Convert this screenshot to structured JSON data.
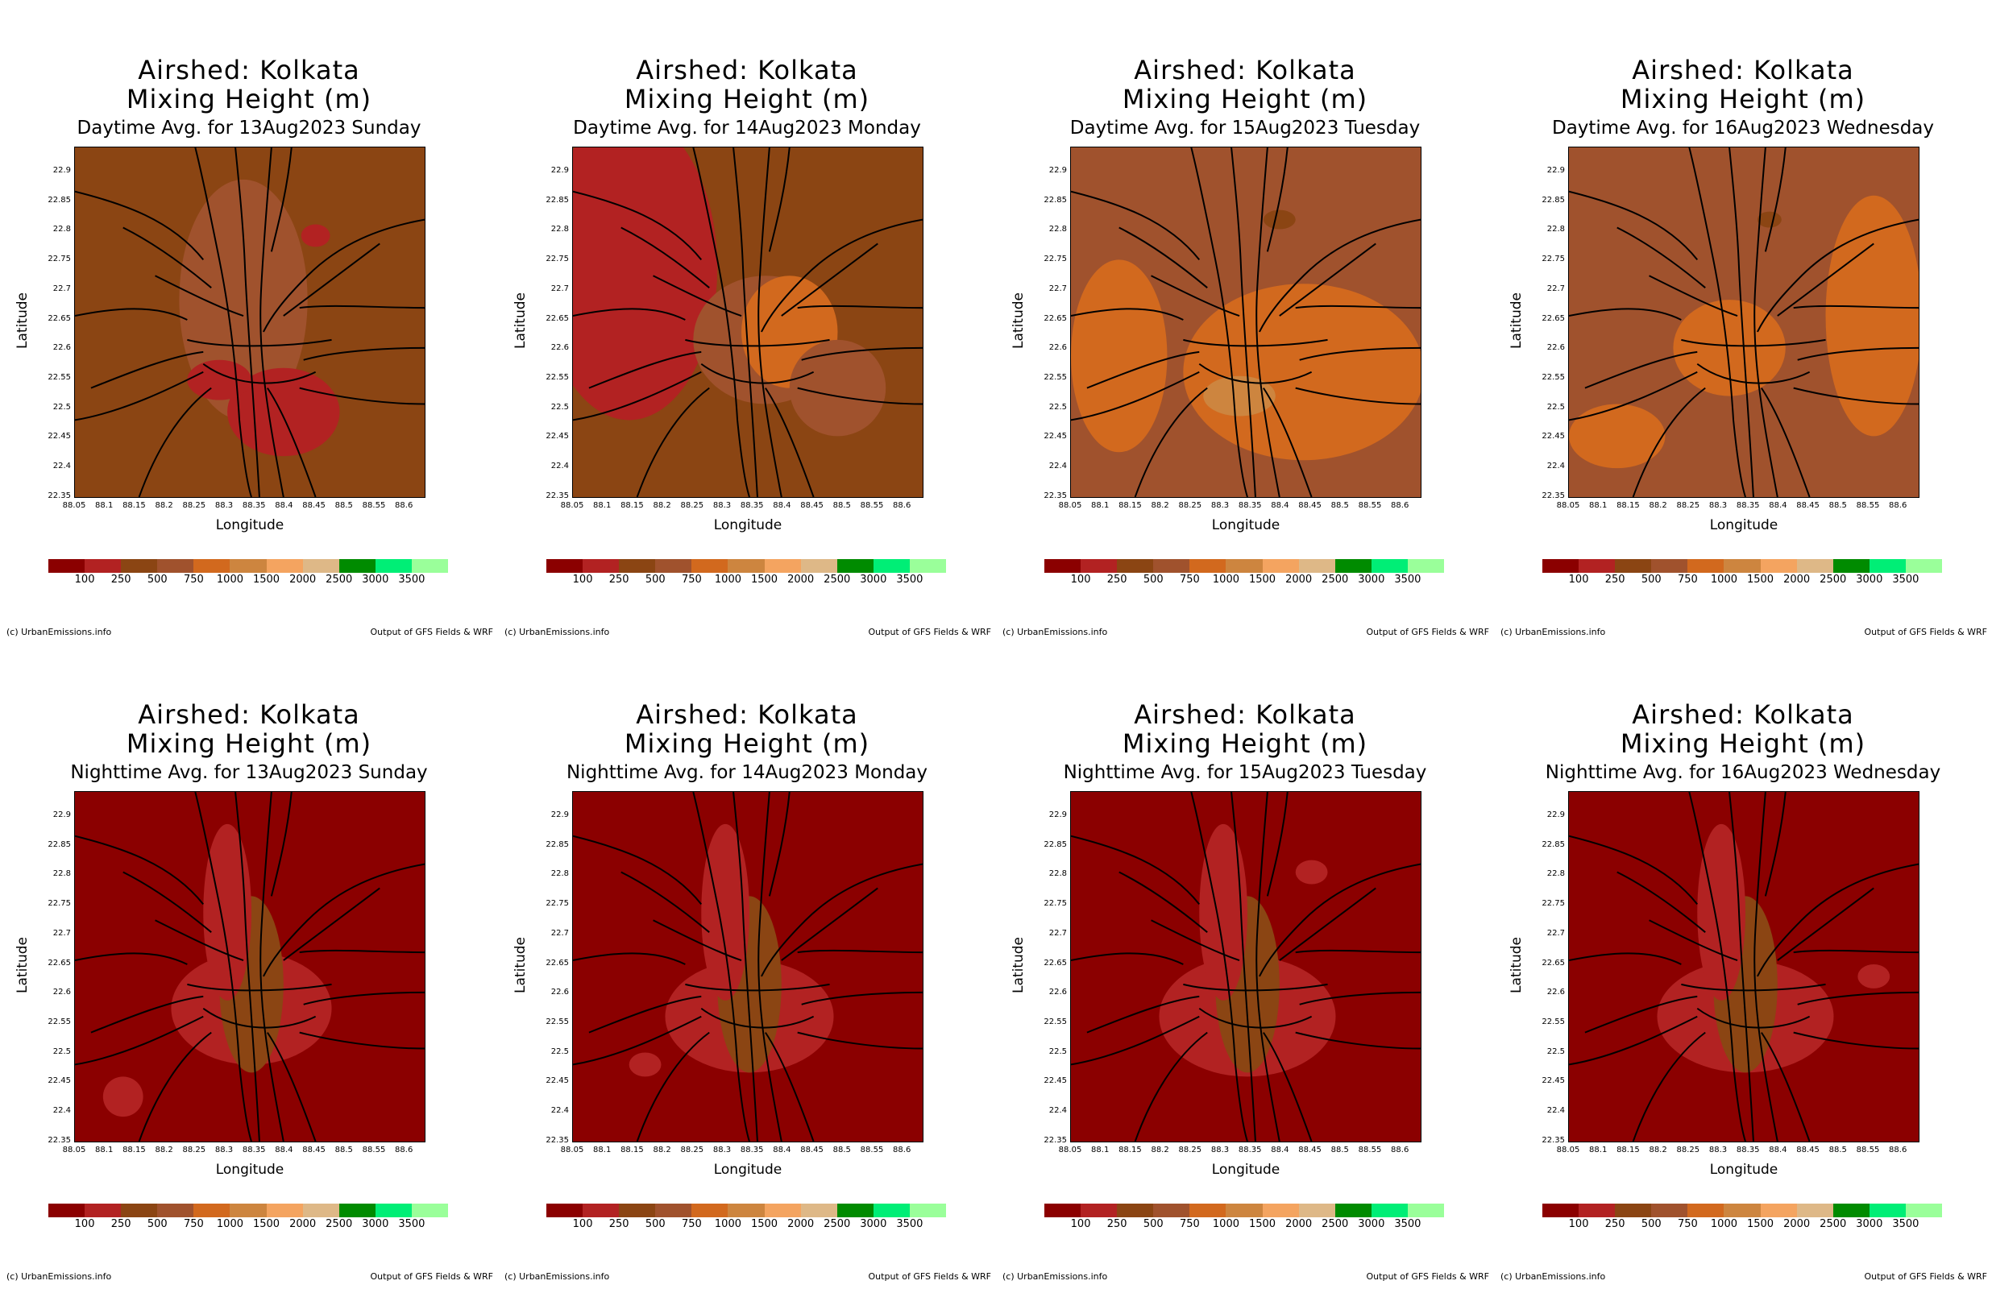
{
  "title_line1": "Airshed: Kolkata",
  "title_line2": "Mixing Height (m)",
  "xlabel": "Longitude",
  "ylabel": "Latitude",
  "copyright": "(c) UrbanEmissions.info",
  "source": "Output of GFS Fields & WRF",
  "lon_ticks": [
    "88.05",
    "88.1",
    "88.15",
    "88.2",
    "88.25",
    "88.3",
    "88.35",
    "88.4",
    "88.45",
    "88.5",
    "88.55",
    "88.6"
  ],
  "lat_ticks": [
    "22.9",
    "22.85",
    "22.8",
    "22.75",
    "22.7",
    "22.65",
    "22.6",
    "22.55",
    "22.5",
    "22.45",
    "22.4",
    "22.35"
  ],
  "colorbar": {
    "colors": [
      "#8b0000",
      "#b22222",
      "#8b4513",
      "#a0522d",
      "#d2691e",
      "#cd853f",
      "#f4a460",
      "#deb887",
      "#008b00",
      "#00ee76",
      "#9aff9a"
    ],
    "labels": [
      "100",
      "250",
      "500",
      "750",
      "1000",
      "1500",
      "2000",
      "2500",
      "3000",
      "3500"
    ]
  },
  "panels": [
    {
      "subtitle": "Daytime Avg. for 13Aug2023 Sunday"
    },
    {
      "subtitle": "Daytime Avg. for 14Aug2023 Monday"
    },
    {
      "subtitle": "Daytime Avg. for 15Aug2023 Tuesday"
    },
    {
      "subtitle": "Daytime Avg. for 16Aug2023 Wednesday"
    },
    {
      "subtitle": "Nighttime Avg. for 13Aug2023 Sunday"
    },
    {
      "subtitle": "Nighttime Avg. for 14Aug2023 Monday"
    },
    {
      "subtitle": "Nighttime Avg. for 15Aug2023 Tuesday"
    },
    {
      "subtitle": "Nighttime Avg. for 16Aug2023 Wednesday"
    }
  ]
}
